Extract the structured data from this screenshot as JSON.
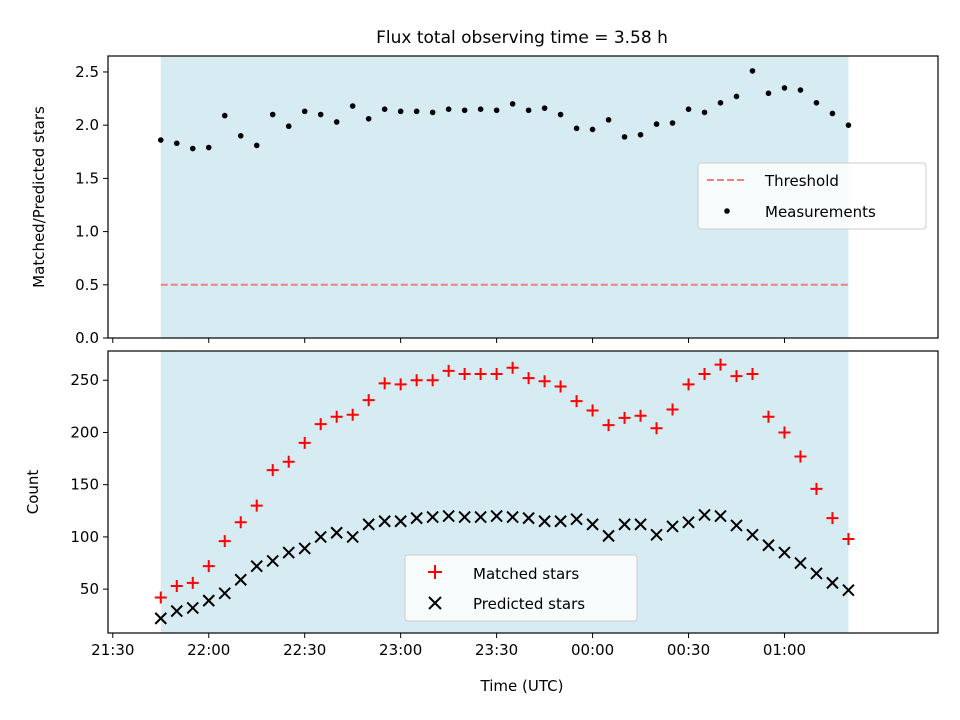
{
  "title": "Flux total observing time = 3.58 h",
  "colors": {
    "span_fill": "#add8e6",
    "threshold": "#f08080",
    "measurement": "#000000",
    "matched": "#ff0000",
    "predicted": "#000000"
  },
  "chart_data": [
    {
      "type": "scatter",
      "panel": "top",
      "ylabel": "Matched/Predicted stars",
      "xlabel": "",
      "x_unit": "minutes after 21:30 UTC",
      "xlim": [
        -1.5,
        258
      ],
      "ylim": [
        0,
        2.65
      ],
      "yticks": [
        0.0,
        0.5,
        1.0,
        1.5,
        2.0,
        2.5
      ],
      "ytick_labels": [
        "0.0",
        "0.5",
        "1.0",
        "1.5",
        "2.0",
        "2.5"
      ],
      "observing_span": [
        15,
        230
      ],
      "threshold": 0.5,
      "legend": {
        "placement": "center-right",
        "entries": [
          "Threshold",
          "Measurements"
        ]
      },
      "series": [
        {
          "name": "Measurements",
          "marker": "dot",
          "x": [
            15,
            20,
            25,
            30,
            35,
            40,
            45,
            50,
            55,
            60,
            65,
            70,
            75,
            80,
            85,
            90,
            95,
            100,
            105,
            110,
            115,
            120,
            125,
            130,
            135,
            140,
            145,
            150,
            155,
            160,
            165,
            170,
            175,
            180,
            185,
            190,
            195,
            200,
            205,
            210,
            215,
            220,
            225,
            230
          ],
          "y": [
            1.86,
            1.83,
            1.78,
            1.79,
            2.09,
            1.9,
            1.81,
            2.1,
            1.99,
            2.13,
            2.1,
            2.03,
            2.18,
            2.06,
            2.15,
            2.13,
            2.13,
            2.12,
            2.15,
            2.14,
            2.15,
            2.14,
            2.2,
            2.14,
            2.16,
            2.1,
            1.97,
            1.96,
            2.05,
            1.89,
            1.91,
            2.01,
            2.02,
            2.15,
            2.12,
            2.21,
            2.27,
            2.51,
            2.3,
            2.35,
            2.33,
            2.21,
            2.11,
            2.0
          ]
        },
        {
          "name": "Threshold",
          "line": "dashed",
          "x": [
            15,
            230
          ],
          "y": [
            0.5,
            0.5
          ]
        }
      ]
    },
    {
      "type": "scatter",
      "panel": "bottom",
      "ylabel": "Count",
      "xlabel": "Time (UTC)",
      "x_unit": "minutes after 21:30 UTC",
      "xlim": [
        -1.5,
        258
      ],
      "ylim": [
        8,
        278
      ],
      "yticks": [
        50,
        100,
        150,
        200,
        250
      ],
      "ytick_labels": [
        "50",
        "100",
        "150",
        "200",
        "250"
      ],
      "xticks": [
        0,
        30,
        60,
        90,
        120,
        150,
        180,
        210
      ],
      "xtick_labels": [
        "21:30",
        "22:00",
        "22:30",
        "23:00",
        "23:30",
        "00:00",
        "00:30",
        "01:00"
      ],
      "observing_span": [
        15,
        230
      ],
      "legend": {
        "placement": "bottom-center",
        "entries": [
          "Matched stars",
          "Predicted stars"
        ]
      },
      "series": [
        {
          "name": "Matched stars",
          "marker": "plus",
          "x": [
            15,
            20,
            25,
            30,
            35,
            40,
            45,
            50,
            55,
            60,
            65,
            70,
            75,
            80,
            85,
            90,
            95,
            100,
            105,
            110,
            115,
            120,
            125,
            130,
            135,
            140,
            145,
            150,
            155,
            160,
            165,
            170,
            175,
            180,
            185,
            190,
            195,
            200,
            205,
            210,
            215,
            220,
            225,
            230
          ],
          "y": [
            42,
            53,
            56,
            72,
            96,
            114,
            130,
            164,
            172,
            190,
            208,
            215,
            217,
            231,
            247,
            246,
            250,
            250,
            259,
            256,
            256,
            256,
            262,
            252,
            249,
            244,
            230,
            221,
            207,
            214,
            216,
            204,
            222,
            246,
            256,
            265,
            254,
            256,
            215,
            200,
            177,
            146,
            118,
            98
          ]
        },
        {
          "name": "Predicted stars",
          "marker": "x",
          "x": [
            15,
            20,
            25,
            30,
            35,
            40,
            45,
            50,
            55,
            60,
            65,
            70,
            75,
            80,
            85,
            90,
            95,
            100,
            105,
            110,
            115,
            120,
            125,
            130,
            135,
            140,
            145,
            150,
            155,
            160,
            165,
            170,
            175,
            180,
            185,
            190,
            195,
            200,
            205,
            210,
            215,
            220,
            225,
            230
          ],
          "y": [
            22,
            29,
            32,
            39,
            46,
            59,
            72,
            77,
            85,
            89,
            100,
            104,
            100,
            112,
            115,
            115,
            118,
            119,
            120,
            119,
            119,
            120,
            119,
            118,
            115,
            115,
            117,
            112,
            101,
            112,
            112,
            102,
            110,
            114,
            121,
            120,
            111,
            102,
            92,
            85,
            75,
            65,
            56,
            49
          ]
        }
      ]
    }
  ]
}
